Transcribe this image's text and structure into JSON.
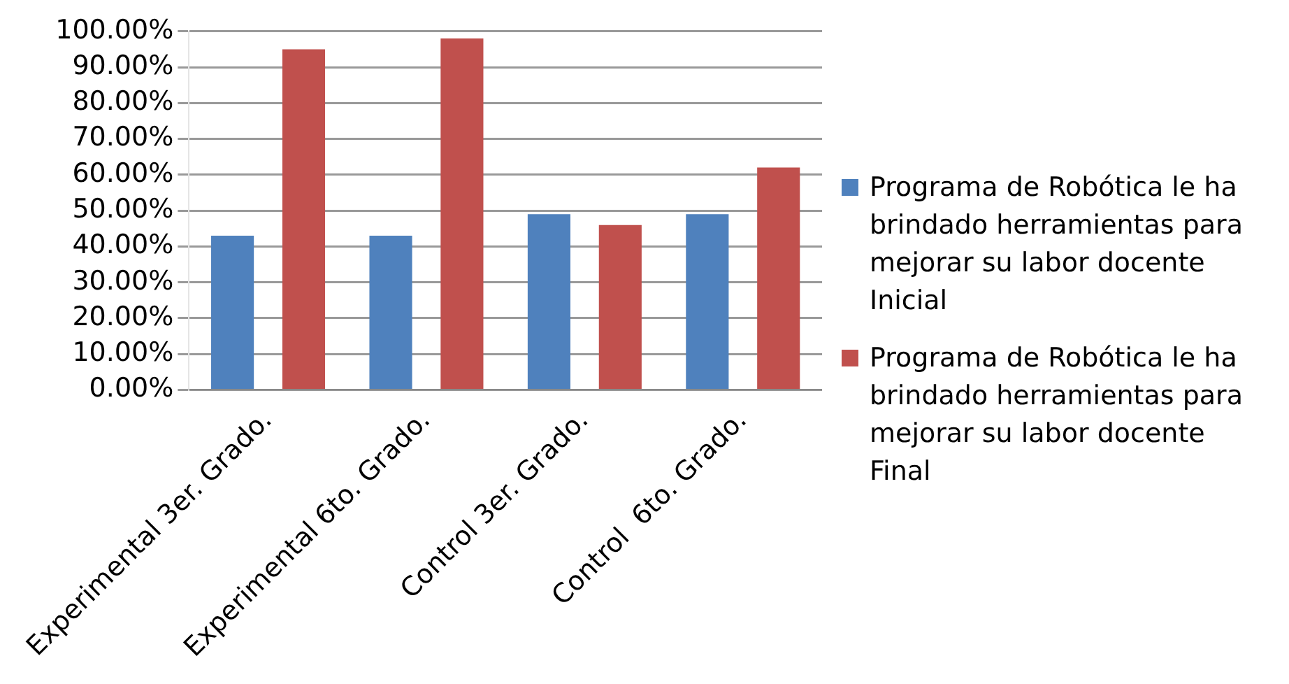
{
  "chart_data": {
    "type": "bar",
    "categories": [
      "Experimental 3er. Grado.",
      "Experimental 6to. Grado.",
      "Control 3er. Grado.",
      "Control  6to. Grado."
    ],
    "series": [
      {
        "name": "Programa de Robótica le ha brindado herramientas para mejorar su labor docente Inicial",
        "color": "#4f81bd",
        "values": [
          43,
          43,
          49,
          49
        ]
      },
      {
        "name": "Programa de Robótica le ha brindado herramientas para mejorar su labor docente Final",
        "color": "#c0504d",
        "values": [
          95,
          98,
          46,
          62
        ]
      }
    ],
    "ylim": [
      0,
      100
    ],
    "yticks": [
      {
        "value": 0,
        "label": "0.00%"
      },
      {
        "value": 10,
        "label": "10.00%"
      },
      {
        "value": 20,
        "label": "20.00%"
      },
      {
        "value": 30,
        "label": "30.00%"
      },
      {
        "value": 40,
        "label": "40.00%"
      },
      {
        "value": 50,
        "label": "50.00%"
      },
      {
        "value": 60,
        "label": "60.00%"
      },
      {
        "value": 70,
        "label": "70.00%"
      },
      {
        "value": 80,
        "label": "80.00%"
      },
      {
        "value": 90,
        "label": "90.00%"
      },
      {
        "value": 100,
        "label": "100.00%"
      }
    ],
    "grid": "y",
    "legend": "right"
  }
}
